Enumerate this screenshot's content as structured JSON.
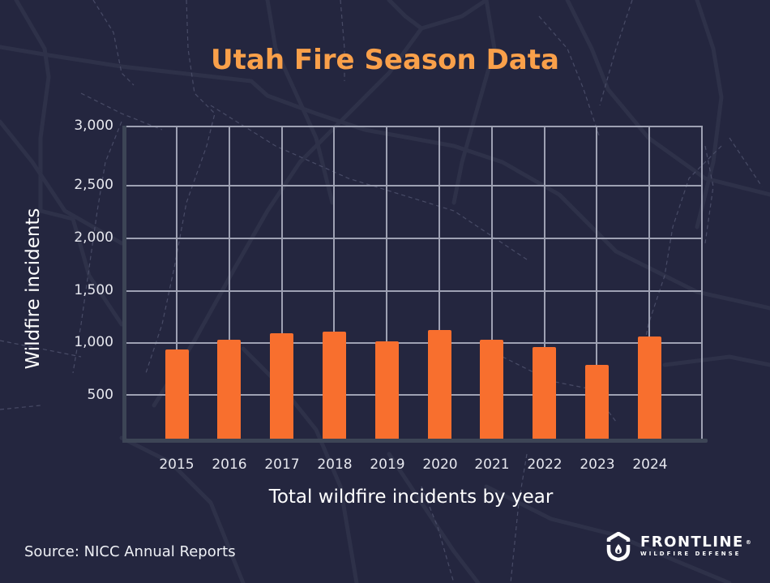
{
  "title": "Utah Fire Season Data",
  "colors": {
    "background": "#24263f",
    "title": "#f9a04a",
    "bar": "#f86f2e",
    "grid": "#9ea1b3",
    "axis": "#3d4556",
    "text": "#e6e7ee"
  },
  "chart_data": {
    "type": "bar",
    "title": "Utah Fire Season Data",
    "xlabel": "Total wildfire incidents by year",
    "ylabel": "Wildfire incidents",
    "categories": [
      "2015",
      "2016",
      "2017",
      "2018",
      "2019",
      "2020",
      "2021",
      "2022",
      "2023",
      "2024"
    ],
    "values": [
      940,
      1030,
      1090,
      1110,
      1015,
      1125,
      1030,
      965,
      795,
      1065
    ],
    "ylim": [
      0,
      3000
    ],
    "yticks": [
      500,
      1000,
      1500,
      2000,
      2500,
      3000
    ],
    "ytick_labels": [
      "500",
      "1,000",
      "1,500",
      "2,000",
      "2,500",
      "3,000"
    ],
    "grid": true,
    "legend": null
  },
  "axis": {
    "ytick_labels": [
      "3,000",
      "2,500",
      "2,000",
      "1,500",
      "1,000",
      "500"
    ],
    "xtick_labels": [
      "2015",
      "2016",
      "2017",
      "2018",
      "2019",
      "2020",
      "2021",
      "2022",
      "2023",
      "2024"
    ],
    "ylabel": "Wildfire incidents",
    "xlabel": "Total wildfire incidents by year"
  },
  "footer": {
    "source": "Source: NICC Annual Reports",
    "logo": {
      "icon": "shield-flame-icon",
      "name": "FRONTLINE",
      "registered": "®",
      "tagline": "WILDFIRE DEFENSE"
    }
  }
}
